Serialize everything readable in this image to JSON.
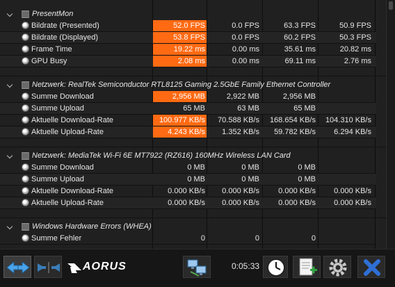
{
  "sections": [
    {
      "title": "PresentMon",
      "rows": [
        {
          "label": "Bildrate (Presented)",
          "v1": "52.0 FPS",
          "v2": "0.0 FPS",
          "v3": "63.3 FPS",
          "v4": "50.9 FPS",
          "hi": true
        },
        {
          "label": "Bildrate (Displayed)",
          "v1": "53.8 FPS",
          "v2": "0.0 FPS",
          "v3": "60.2 FPS",
          "v4": "50.3 FPS",
          "hi": true
        },
        {
          "label": "Frame Time",
          "v1": "19.22 ms",
          "v2": "0.00 ms",
          "v3": "35.61 ms",
          "v4": "20.82 ms",
          "hi": true
        },
        {
          "label": "GPU Busy",
          "v1": "2.08 ms",
          "v2": "0.00 ms",
          "v3": "69.11 ms",
          "v4": "2.76 ms",
          "hi": true
        }
      ]
    },
    {
      "title": "Netzwerk: RealTek Semiconductor RTL8125 Gaming 2.5GbE Family Ethernet Controller",
      "rows": [
        {
          "label": "Summe Download",
          "v1": "2,956 MB",
          "v2": "2,922 MB",
          "v3": "2,956 MB",
          "v4": "",
          "hi": true
        },
        {
          "label": "Summe Upload",
          "v1": "65 MB",
          "v2": "63 MB",
          "v3": "65 MB",
          "v4": "",
          "hi": false
        },
        {
          "label": "Aktuelle Download-Rate",
          "v1": "100.977 KB/s",
          "v2": "70.588 KB/s",
          "v3": "168.654 KB/s",
          "v4": "104.310 KB/s",
          "hi": true
        },
        {
          "label": "Aktuelle Upload-Rate",
          "v1": "4.243 KB/s",
          "v2": "1.352 KB/s",
          "v3": "59.782 KB/s",
          "v4": "6.294 KB/s",
          "hi": true
        }
      ]
    },
    {
      "title": "Netzwerk: MediaTek Wi-Fi 6E MT7922 (RZ616) 160MHz Wireless LAN Card",
      "rows": [
        {
          "label": "Summe Download",
          "v1": "0 MB",
          "v2": "0 MB",
          "v3": "0 MB",
          "v4": "",
          "hi": false
        },
        {
          "label": "Summe Upload",
          "v1": "0 MB",
          "v2": "0 MB",
          "v3": "0 MB",
          "v4": "",
          "hi": false
        },
        {
          "label": "Aktuelle Download-Rate",
          "v1": "0.000 KB/s",
          "v2": "0.000 KB/s",
          "v3": "0.000 KB/s",
          "v4": "0.000 KB/s",
          "hi": false
        },
        {
          "label": "Aktuelle Upload-Rate",
          "v1": "0.000 KB/s",
          "v2": "0.000 KB/s",
          "v3": "0.000 KB/s",
          "v4": "0.000 KB/s",
          "hi": false
        }
      ]
    },
    {
      "title": "Windows Hardware Errors (WHEA)",
      "rows": [
        {
          "label": "Summe Fehler",
          "v1": "0",
          "v2": "0",
          "v3": "0",
          "v4": "",
          "hi": false
        }
      ]
    }
  ],
  "toolbar": {
    "logo_text": "AORUS",
    "elapsed_time": "0:05:33",
    "nav_left_right_icon": "left-right-arrows-icon",
    "nav_collapse_icon": "collapse-arrows-icon",
    "network_icon": "network-computers-icon",
    "clock_icon": "clock-icon",
    "report_icon": "report-add-icon",
    "settings_icon": "gear-icon",
    "close_icon": "close-x-icon"
  },
  "colors": {
    "highlight": "#ff6a13",
    "background": "#1e1e1e",
    "close_button": "#2f6fd6"
  }
}
